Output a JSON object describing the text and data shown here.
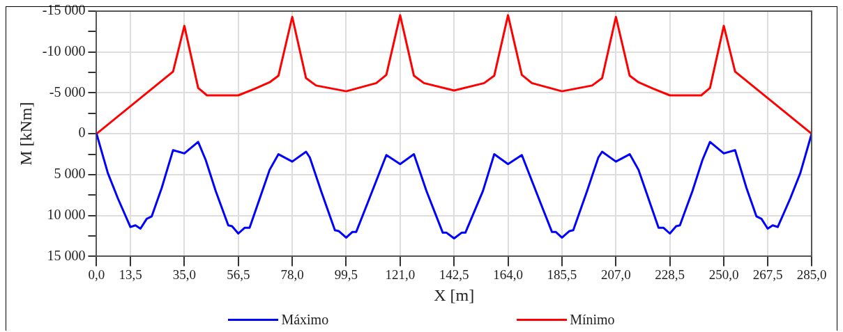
{
  "chart_data": {
    "type": "line",
    "xlabel": "X [m]",
    "ylabel": "M [kNm]",
    "xlim": [
      0,
      285
    ],
    "xticks": [
      {
        "value": 0,
        "label": "0,0"
      },
      {
        "value": 13.5,
        "label": "13,5"
      },
      {
        "value": 35,
        "label": "35,0"
      },
      {
        "value": 56.5,
        "label": "56,5"
      },
      {
        "value": 78,
        "label": "78,0"
      },
      {
        "value": 99.5,
        "label": "99,5"
      },
      {
        "value": 121,
        "label": "121,0"
      },
      {
        "value": 142.5,
        "label": "142,5"
      },
      {
        "value": 164,
        "label": "164,0"
      },
      {
        "value": 185.5,
        "label": "185,5"
      },
      {
        "value": 207,
        "label": "207,0"
      },
      {
        "value": 228.5,
        "label": "228,5"
      },
      {
        "value": 250,
        "label": "250,0"
      },
      {
        "value": 267.5,
        "label": "267,5"
      },
      {
        "value": 285,
        "label": "285,0"
      }
    ],
    "ylim": [
      15000,
      -15000
    ],
    "yticks": [
      {
        "value": -15000,
        "label": "-15 000"
      },
      {
        "value": -12500,
        "label": null
      },
      {
        "value": -10000,
        "label": "-10 000"
      },
      {
        "value": -7500,
        "label": null
      },
      {
        "value": -5000,
        "label": "-5 000"
      },
      {
        "value": -2500,
        "label": null
      },
      0,
      {
        "value": 2500,
        "label": null
      },
      {
        "value": 5000,
        "label": "5 000"
      },
      {
        "value": 7500,
        "label": null
      },
      {
        "value": 10000,
        "label": "10 000"
      },
      {
        "value": 12500,
        "label": null
      },
      {
        "value": 15000,
        "label": "15 000"
      }
    ],
    "grid": true,
    "legend": "bottom",
    "marker": "none",
    "line_style": "solid",
    "series": [
      {
        "name": "Máximo",
        "color": "#0000ff",
        "x": [
          0,
          4.5,
          8.5,
          13.5,
          15.5,
          17.5,
          20,
          22,
          26,
          30.5,
          35,
          40.5,
          43.5,
          47.5,
          52.5,
          54,
          56.5,
          59,
          61,
          69,
          72.5,
          78,
          83.5,
          85,
          89.5,
          95,
          96.5,
          99.5,
          102,
          103.5,
          108,
          115.5,
          121,
          126.5,
          131.5,
          138,
          139.5,
          142.5,
          145.5,
          147,
          154,
          158.5,
          164,
          169.5,
          177,
          181.5,
          183,
          185.5,
          188.5,
          190,
          195.5,
          200,
          201.5,
          207,
          212.5,
          216,
          224,
          226,
          228.5,
          231,
          232.5,
          237.5,
          241.5,
          244.5,
          250,
          254.5,
          259,
          263,
          265,
          267.5,
          269.5,
          271.5,
          276.5,
          280.5,
          285
        ],
        "values": [
          0,
          4800,
          7900,
          11400,
          11200,
          11600,
          10400,
          10100,
          6600,
          2000,
          2400,
          1000,
          3200,
          7000,
          11200,
          11300,
          12200,
          11500,
          11500,
          4400,
          2500,
          3400,
          2200,
          2900,
          7000,
          11800,
          11900,
          12700,
          12000,
          12000,
          8500,
          2600,
          3700,
          2500,
          7000,
          12100,
          12100,
          12800,
          12100,
          12100,
          7000,
          2500,
          3700,
          2600,
          8500,
          12000,
          12000,
          12700,
          11900,
          11800,
          7000,
          2900,
          2200,
          3400,
          2500,
          4400,
          11500,
          11500,
          12200,
          11300,
          11200,
          7000,
          3200,
          1000,
          2400,
          2000,
          6600,
          10100,
          10400,
          11600,
          11200,
          11400,
          7900,
          4800,
          0
        ]
      },
      {
        "name": "Mínimo",
        "color": "#ff0000",
        "x": [
          0,
          30.5,
          35,
          40.5,
          44,
          56.5,
          63,
          69,
          72.5,
          78,
          83.5,
          87.5,
          99.5,
          111.5,
          115.5,
          121,
          126.5,
          130.5,
          142.5,
          154.5,
          158.5,
          164,
          169.5,
          173.5,
          185.5,
          197.5,
          201.5,
          207,
          212.5,
          216,
          222,
          228.5,
          241,
          244.5,
          250,
          254.5,
          285
        ],
        "values": [
          0,
          -7600,
          -13200,
          -5600,
          -4700,
          -4700,
          -5500,
          -6300,
          -7100,
          -14300,
          -6800,
          -5900,
          -5200,
          -6200,
          -7200,
          -14500,
          -7100,
          -6200,
          -5300,
          -6200,
          -7100,
          -14500,
          -7200,
          -6200,
          -5200,
          -5900,
          -6800,
          -14300,
          -7100,
          -6300,
          -5500,
          -4700,
          -4700,
          -5600,
          -13200,
          -7600,
          0
        ]
      }
    ]
  }
}
